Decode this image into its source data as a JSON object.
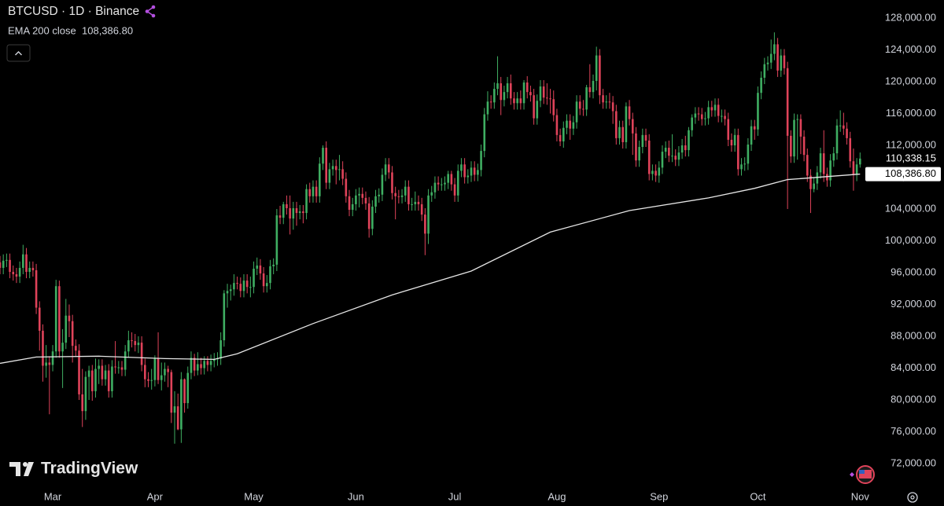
{
  "chart_data": {
    "type": "candlestick",
    "title": "BTCUSD · 1D · Binance",
    "brand": "TradingView",
    "up_color": "#3fae62",
    "down_color": "#e0435a",
    "xlim": [
      0,
      262.6
    ],
    "xticks": [
      {
        "value": 16,
        "label": "Mar"
      },
      {
        "value": 47,
        "label": "Apr"
      },
      {
        "value": 77,
        "label": "May"
      },
      {
        "value": 108,
        "label": "Jun"
      },
      {
        "value": 138,
        "label": "Jul"
      },
      {
        "value": 169,
        "label": "Aug"
      },
      {
        "value": 200,
        "label": "Sep"
      },
      {
        "value": 230,
        "label": "Oct"
      },
      {
        "value": 261,
        "label": "Nov"
      }
    ],
    "ylim": [
      69040,
      130270
    ],
    "yticks": [
      {
        "value": 72000,
        "label": "72,000.00"
      },
      {
        "value": 76000,
        "label": "76,000.00"
      },
      {
        "value": 80000,
        "label": "80,000.00"
      },
      {
        "value": 84000,
        "label": "84,000.00"
      },
      {
        "value": 88000,
        "label": "88,000.00"
      },
      {
        "value": 92000,
        "label": "92,000.00"
      },
      {
        "value": 96000,
        "label": "96,000.00"
      },
      {
        "value": 100000,
        "label": "100,000.00"
      },
      {
        "value": 104000,
        "label": "104,000.00"
      },
      {
        "value": 108000,
        "label": "108,000.00"
      },
      {
        "value": 112000,
        "label": "112,000.00"
      },
      {
        "value": 116000,
        "label": "116,000.00"
      },
      {
        "value": 120000,
        "label": "120,000.00"
      },
      {
        "value": 124000,
        "label": "124,000.00"
      },
      {
        "value": 128000,
        "label": "128,000.00"
      }
    ],
    "last_close_label": "110,338.15",
    "open": [
      97300,
      96600,
      97500,
      97600,
      96100,
      95800,
      95500,
      96600,
      98300,
      96100,
      96600,
      96300,
      91600,
      88700,
      84300,
      84700,
      84400,
      86100,
      94300,
      86100,
      87200,
      90600,
      89900,
      86800,
      86200,
      80700,
      78600,
      82900,
      83700,
      81100,
      83900,
      84300,
      82600,
      83700,
      81100,
      84200,
      84100,
      84100,
      83800,
      86100,
      87500,
      87400,
      86900,
      87200,
      84400,
      82600,
      82400,
      82500,
      85200,
      82500,
      83100,
      83900,
      83500,
      78400,
      79200,
      76300,
      82600,
      79600,
      83400,
      85300,
      83700,
      84500,
      84000,
      84900,
      84400,
      84900,
      85100,
      85200,
      87500,
      93400,
      93700,
      93900,
      94700,
      94600,
      93700,
      95000,
      94200,
      94200,
      96500,
      96900,
      95900,
      94300,
      94700,
      96800,
      97000,
      103200,
      102900,
      104600,
      104100,
      102800,
      104100,
      103500,
      103700,
      103500,
      106500,
      105600,
      106800,
      105600,
      109700,
      111700,
      107300,
      109000,
      109400,
      108900,
      109000,
      107800,
      105600,
      103900,
      104600,
      105700,
      105900,
      105400,
      104700,
      101500,
      104300,
      105600,
      105800,
      108300,
      109600,
      108600,
      106000,
      105600,
      105500,
      105700,
      106800,
      104600,
      104600,
      104900,
      104600,
      103300,
      100900,
      105700,
      106100,
      107300,
      107100,
      107100,
      107300,
      108400,
      107100,
      105700,
      108800,
      109600,
      108000,
      108200,
      109200,
      108300,
      108900,
      111300,
      115900,
      117500,
      117400,
      119100,
      119800,
      117700,
      118700,
      119800,
      117900,
      117300,
      117900,
      117300,
      119900,
      118700,
      118300,
      115400,
      117600,
      119400,
      118000,
      117900,
      117800,
      115800,
      113300,
      112500,
      114200,
      115100,
      114100,
      114900,
      117500,
      116600,
      116500,
      119300,
      118700,
      120100,
      123300,
      118300,
      117400,
      117500,
      117400,
      116300,
      112900,
      114300,
      112400,
      116900,
      115300,
      113500,
      110100,
      111800,
      113300,
      112600,
      108400,
      108800,
      108200,
      109200,
      111200,
      111700,
      110700,
      110700,
      110200,
      111100,
      112000,
      111400,
      113900,
      115500,
      116000,
      115900,
      115300,
      115400,
      116800,
      116400,
      117100,
      115700,
      115700,
      115300,
      112700,
      112000,
      113300,
      109000,
      109600,
      109700,
      112100,
      114400,
      114000,
      118600,
      120500,
      122200,
      122400,
      123500,
      124700,
      121400,
      123300,
      121700,
      113200,
      110600,
      115200,
      115300,
      113100,
      110800,
      108200,
      106500,
      107200,
      108600,
      111000,
      108400,
      107600,
      110100,
      111000,
      114500,
      114500,
      114100,
      112900,
      110000,
      108300,
      109600
    ],
    "high": [
      98100,
      98300,
      98400,
      98400,
      96900,
      96600,
      97400,
      99500,
      99100,
      97400,
      97400,
      97100,
      92400,
      89500,
      86900,
      85500,
      86900,
      95100,
      95000,
      88900,
      92700,
      92000,
      90700,
      87600,
      87000,
      83900,
      83600,
      84300,
      84400,
      85200,
      85100,
      85100,
      84400,
      84500,
      85000,
      87400,
      84900,
      84900,
      86900,
      88700,
      88500,
      88300,
      88000,
      88000,
      85200,
      83500,
      83900,
      85600,
      88500,
      84700,
      84700,
      84300,
      83800,
      81100,
      80800,
      83500,
      82700,
      84200,
      86100,
      85800,
      86000,
      85300,
      85500,
      85500,
      85700,
      85900,
      86000,
      88500,
      93800,
      94600,
      94500,
      95800,
      95500,
      95400,
      95800,
      95800,
      95500,
      97400,
      97900,
      97700,
      96700,
      95700,
      97600,
      97800,
      104000,
      104400,
      104900,
      105700,
      105700,
      104900,
      104900,
      104500,
      104500,
      107100,
      107300,
      107600,
      107600,
      110500,
      112000,
      112500,
      109800,
      110200,
      110200,
      110800,
      110000,
      108600,
      106400,
      105400,
      106500,
      106700,
      106700,
      106200,
      105500,
      105100,
      106400,
      106600,
      109100,
      110400,
      110400,
      109400,
      106800,
      106400,
      106500,
      107600,
      107600,
      105400,
      106200,
      105700,
      105400,
      104100,
      106500,
      106900,
      108100,
      108100,
      107900,
      108100,
      108800,
      108800,
      107900,
      109600,
      110400,
      110400,
      109000,
      110000,
      110000,
      109700,
      112100,
      116700,
      118800,
      118300,
      119900,
      123200,
      120600,
      119500,
      120600,
      120900,
      118700,
      118700,
      118900,
      120200,
      120700,
      119500,
      119100,
      118400,
      120200,
      120200,
      119800,
      119100,
      118900,
      116600,
      114100,
      115000,
      115900,
      115900,
      115700,
      118300,
      118300,
      117700,
      119600,
      122200,
      120900,
      124400,
      124100,
      119100,
      118300,
      118600,
      118200,
      117100,
      115100,
      115100,
      117400,
      117700,
      116100,
      114300,
      112600,
      114100,
      114100,
      113400,
      109600,
      109600,
      110000,
      112000,
      112500,
      112600,
      113400,
      111500,
      111900,
      112800,
      113200,
      114300,
      115900,
      116800,
      116800,
      116700,
      116200,
      117600,
      117600,
      117900,
      117900,
      116500,
      116500,
      116100,
      113500,
      114100,
      114100,
      110400,
      110500,
      112900,
      115200,
      115200,
      119400,
      121300,
      123000,
      123200,
      125300,
      126200,
      125500,
      124100,
      124100,
      122500,
      113900,
      116000,
      115900,
      115900,
      113900,
      111600,
      109000,
      108000,
      109400,
      111700,
      113900,
      109200,
      110900,
      111800,
      115300,
      116400,
      116100,
      114900,
      113700,
      111600,
      110400,
      111100
    ],
    "low": [
      95800,
      95800,
      96700,
      95300,
      95000,
      94700,
      94700,
      95800,
      95300,
      95300,
      95500,
      90800,
      86200,
      82300,
      82800,
      78200,
      83600,
      85300,
      85300,
      81500,
      86400,
      87900,
      84700,
      85400,
      80000,
      76600,
      77500,
      80000,
      79900,
      80300,
      82000,
      81800,
      81800,
      80300,
      80300,
      83300,
      83300,
      83000,
      83000,
      85300,
      86600,
      86100,
      85900,
      83600,
      81600,
      81600,
      81300,
      81700,
      82000,
      81200,
      82300,
      81600,
      77100,
      74500,
      76200,
      74600,
      78400,
      78900,
      82600,
      83000,
      83100,
      83200,
      83200,
      83600,
      83600,
      84100,
      84300,
      84400,
      86700,
      91600,
      92500,
      93100,
      93900,
      92900,
      92900,
      93400,
      92900,
      93400,
      95700,
      95100,
      93500,
      93500,
      93900,
      95800,
      96200,
      102100,
      102100,
      103300,
      100800,
      101400,
      101900,
      102700,
      102200,
      102700,
      104800,
      104800,
      104800,
      104800,
      108900,
      106500,
      106500,
      108200,
      107100,
      107600,
      107000,
      104800,
      103100,
      103100,
      103800,
      104200,
      104600,
      103900,
      100400,
      100700,
      103500,
      104800,
      105000,
      107500,
      107800,
      105200,
      102700,
      104700,
      104700,
      104900,
      103800,
      103800,
      103800,
      103800,
      102500,
      98200,
      99600,
      104900,
      105300,
      106300,
      106300,
      106300,
      106500,
      106300,
      104900,
      104900,
      108000,
      107200,
      107200,
      107400,
      107500,
      107500,
      108100,
      110500,
      115100,
      116600,
      116600,
      118300,
      115800,
      116900,
      117900,
      117100,
      116500,
      116500,
      116500,
      116500,
      117900,
      117500,
      114600,
      114600,
      116800,
      117200,
      117100,
      116000,
      115000,
      112500,
      111900,
      111700,
      113400,
      112700,
      113300,
      114100,
      115800,
      115700,
      115700,
      118000,
      117900,
      118900,
      117200,
      116600,
      116600,
      116600,
      114700,
      112100,
      112100,
      111600,
      111600,
      114500,
      110800,
      109300,
      109300,
      111000,
      111800,
      107600,
      107600,
      107400,
      107300,
      108400,
      110400,
      109900,
      109900,
      109400,
      109400,
      110300,
      110600,
      110600,
      113100,
      114700,
      115100,
      114500,
      114500,
      114600,
      115600,
      115600,
      114900,
      114900,
      114500,
      111900,
      111200,
      111200,
      108200,
      108200,
      108800,
      108900,
      111300,
      112700,
      113200,
      117800,
      119700,
      121400,
      121600,
      122700,
      120600,
      120600,
      120900,
      104000,
      109800,
      109800,
      110200,
      110900,
      110000,
      107400,
      103500,
      106100,
      106400,
      107800,
      107400,
      106800,
      106800,
      109300,
      110200,
      113700,
      113300,
      112100,
      109200,
      106300,
      107500,
      109200
    ],
    "close": [
      96600,
      97500,
      97600,
      96100,
      95800,
      95500,
      96600,
      98300,
      96100,
      96600,
      96300,
      91600,
      88700,
      84300,
      84700,
      84400,
      86100,
      94300,
      86100,
      87200,
      90600,
      89900,
      86800,
      86200,
      80700,
      78600,
      82900,
      83700,
      81100,
      83900,
      84300,
      82600,
      83700,
      81100,
      84200,
      84100,
      84100,
      83800,
      86100,
      87500,
      87400,
      86900,
      87200,
      84400,
      82600,
      82400,
      82500,
      85200,
      82500,
      83100,
      83900,
      83500,
      78400,
      79200,
      76300,
      82600,
      79600,
      83400,
      85300,
      83700,
      84500,
      84000,
      84900,
      84400,
      84900,
      85100,
      85200,
      87500,
      93400,
      93700,
      93900,
      94700,
      94600,
      93700,
      95000,
      94200,
      94200,
      96500,
      96900,
      95900,
      94300,
      94700,
      96800,
      97000,
      103200,
      102900,
      104600,
      104100,
      102800,
      104100,
      103500,
      103700,
      103500,
      106500,
      105600,
      106800,
      105600,
      109700,
      111700,
      107300,
      109000,
      109400,
      108900,
      109000,
      107800,
      105600,
      103900,
      104600,
      105700,
      105900,
      105400,
      104700,
      101500,
      104300,
      105600,
      105800,
      108300,
      109600,
      108600,
      106000,
      105600,
      105500,
      105700,
      106800,
      104600,
      104600,
      104900,
      104600,
      103300,
      100900,
      105700,
      106100,
      107300,
      107100,
      107100,
      107300,
      108400,
      107100,
      105700,
      108800,
      109600,
      108000,
      108200,
      109200,
      108300,
      108900,
      111300,
      115900,
      117500,
      117400,
      119100,
      119800,
      117700,
      118700,
      119800,
      117900,
      117300,
      117900,
      117300,
      119900,
      118700,
      118300,
      115400,
      117600,
      119400,
      118000,
      117900,
      117800,
      115800,
      113300,
      112500,
      114200,
      115100,
      114100,
      114900,
      117500,
      116600,
      116500,
      119300,
      118700,
      120100,
      123300,
      118300,
      117400,
      117500,
      117400,
      116300,
      112900,
      114300,
      112400,
      116900,
      115300,
      113500,
      110100,
      111800,
      113300,
      112600,
      108400,
      108800,
      108200,
      109200,
      111200,
      111700,
      110700,
      110700,
      110200,
      111100,
      112000,
      111400,
      113900,
      115500,
      116000,
      115900,
      115300,
      115400,
      116800,
      116400,
      117100,
      115700,
      115700,
      115300,
      112700,
      112000,
      113300,
      109000,
      109600,
      109700,
      112100,
      114400,
      114000,
      118600,
      120500,
      122200,
      122400,
      123500,
      124700,
      121400,
      123300,
      121700,
      113200,
      110600,
      115200,
      115300,
      113100,
      110800,
      108200,
      106500,
      107200,
      108600,
      111000,
      108400,
      107600,
      110100,
      111000,
      114500,
      114500,
      114100,
      112900,
      110000,
      108300,
      109600,
      110338.15
    ],
    "overlays": [
      {
        "name": "EMA 200 close",
        "color": "#e6e6e6",
        "last_label": "108,386.80",
        "x": [
          0,
          11,
          30,
          50,
          65,
          72,
          95,
          119,
          143,
          167,
          191,
          215,
          229,
          239,
          261
        ],
        "values": [
          84600,
          85400,
          85500,
          85200,
          85100,
          85800,
          89600,
          93200,
          96200,
          101100,
          103800,
          105400,
          106600,
          107700,
          108386.8
        ]
      }
    ]
  }
}
